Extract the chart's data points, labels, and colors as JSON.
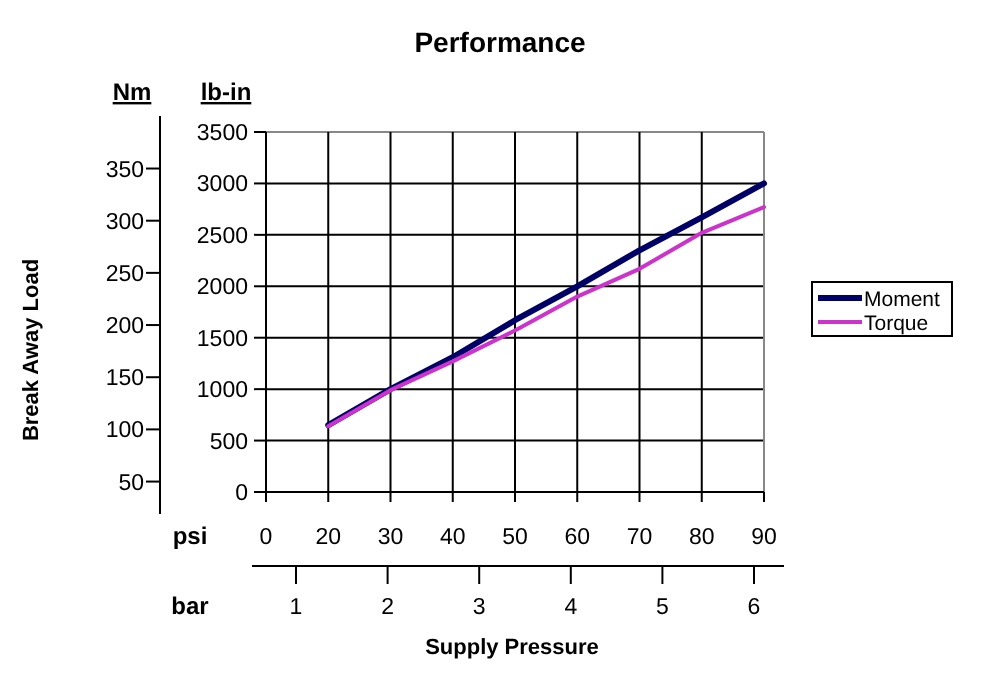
{
  "chart_data": {
    "type": "line",
    "title": "Performance",
    "xlabel": "Supply Pressure",
    "y2label": "Break Away Load",
    "categories": [
      "0",
      "20",
      "30",
      "40",
      "50",
      "60",
      "70",
      "80",
      "90"
    ],
    "series": [
      {
        "name": "Moment",
        "color": "#000066",
        "values": [
          null,
          650,
          1000,
          1310,
          1670,
          2000,
          2350,
          2670,
          3000
        ]
      },
      {
        "name": "Torque",
        "color": "#cc33cc",
        "values": [
          null,
          640,
          990,
          1270,
          1570,
          1900,
          2170,
          2520,
          2770
        ]
      }
    ],
    "ylim": [
      0,
      3500
    ],
    "yticks": [
      0,
      500,
      1000,
      1500,
      2000,
      2500,
      3000,
      3500
    ],
    "y2lim": [
      40,
      385
    ],
    "y2ticks": [
      50,
      100,
      150,
      200,
      250,
      300,
      350
    ],
    "x2lim": [
      1,
      6
    ],
    "x2ticks": [
      1,
      2,
      3,
      4,
      5,
      6
    ],
    "annotations": [
      "Nm",
      "lb-in",
      "psi",
      "bar"
    ],
    "grid": true,
    "legend": "right",
    "line_style": "solid"
  }
}
